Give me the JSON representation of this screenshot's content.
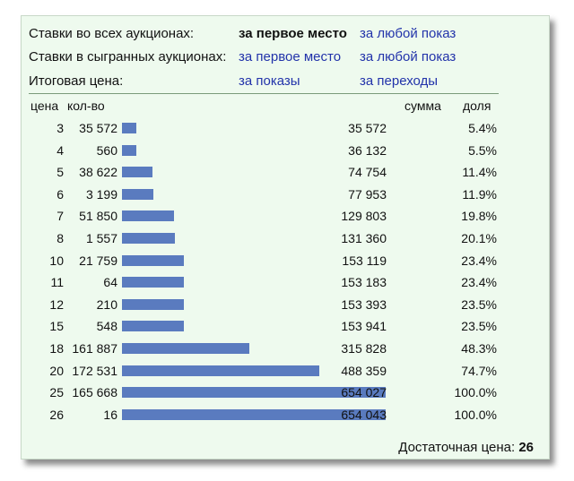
{
  "header_rows": [
    {
      "label": "Ставки во всех аукционах:",
      "opt1": "за первое место",
      "opt1_active": true,
      "opt2": "за любой показ",
      "opt2_active": false
    },
    {
      "label": "Ставки в сыгранных аукционах:",
      "opt1": "за первое место",
      "opt1_active": false,
      "opt2": "за любой показ",
      "opt2_active": false
    },
    {
      "label": "Итоговая цена:",
      "opt1": "за показы",
      "opt1_active": false,
      "opt2": "за переходы",
      "opt2_active": false
    }
  ],
  "columns": {
    "price": "цена",
    "count": "кол-во",
    "sum": "сумма",
    "share": "доля"
  },
  "rows": [
    {
      "price": "3",
      "count": "35 572",
      "sum": "35 572",
      "share": "5.4%",
      "share_value": 0.054
    },
    {
      "price": "4",
      "count": "560",
      "sum": "36 132",
      "share": "5.5%",
      "share_value": 0.055
    },
    {
      "price": "5",
      "count": "38 622",
      "sum": "74 754",
      "share": "11.4%",
      "share_value": 0.114
    },
    {
      "price": "6",
      "count": "3 199",
      "sum": "77 953",
      "share": "11.9%",
      "share_value": 0.119
    },
    {
      "price": "7",
      "count": "51 850",
      "sum": "129 803",
      "share": "19.8%",
      "share_value": 0.198
    },
    {
      "price": "8",
      "count": "1 557",
      "sum": "131 360",
      "share": "20.1%",
      "share_value": 0.201
    },
    {
      "price": "10",
      "count": "21 759",
      "sum": "153 119",
      "share": "23.4%",
      "share_value": 0.234
    },
    {
      "price": "11",
      "count": "64",
      "sum": "153 183",
      "share": "23.4%",
      "share_value": 0.234
    },
    {
      "price": "12",
      "count": "210",
      "sum": "153 393",
      "share": "23.5%",
      "share_value": 0.235
    },
    {
      "price": "15",
      "count": "548",
      "sum": "153 941",
      "share": "23.5%",
      "share_value": 0.235
    },
    {
      "price": "18",
      "count": "161 887",
      "sum": "315 828",
      "share": "48.3%",
      "share_value": 0.483
    },
    {
      "price": "20",
      "count": "172 531",
      "sum": "488 359",
      "share": "74.7%",
      "share_value": 0.747
    },
    {
      "price": "25",
      "count": "165 668",
      "sum": "654 027",
      "share": "100.0%",
      "share_value": 1.0
    },
    {
      "price": "26",
      "count": "16",
      "sum": "654 043",
      "share": "100.0%",
      "share_value": 1.0
    }
  ],
  "footer": {
    "label": "Достаточная цена:",
    "value": "26"
  },
  "colors": {
    "bar": "#5a7bbf",
    "link": "#2233aa",
    "panel_bg": "#eefaee"
  }
}
